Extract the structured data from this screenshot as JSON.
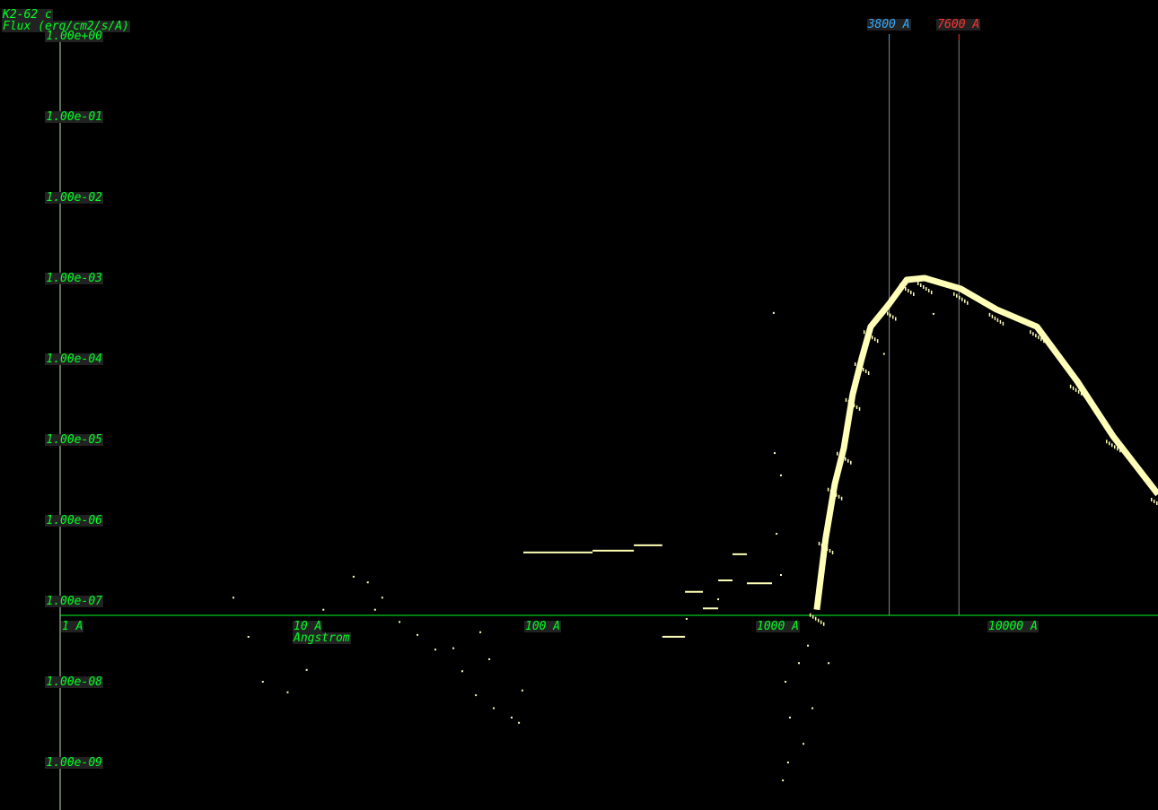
{
  "header": {
    "object_name": "K2-62 c",
    "y_axis_label": "Flux (erg/cm2/s/A)"
  },
  "colors": {
    "axis_text": "#00ff22",
    "label_bg": "#222222",
    "data": "#ffffb8",
    "marker_blue": "#33aaff",
    "marker_red": "#ff3333",
    "marker_line": "#888888"
  },
  "chart_data": {
    "type": "scatter",
    "title": "K2-62 c",
    "xlabel": "Angstrom",
    "ylabel": "Flux (erg/cm2/s/A)",
    "x_scale": "log",
    "y_scale": "log",
    "xlim": [
      1,
      55000
    ],
    "ylim": [
      1e-09,
      1
    ],
    "x_ticks": [
      {
        "value": 1,
        "label": "1 A"
      },
      {
        "value": 10,
        "label": "10 A"
      },
      {
        "value": 100,
        "label": "100 A"
      },
      {
        "value": 1000,
        "label": "1000 A"
      },
      {
        "value": 10000,
        "label": "10000 A"
      }
    ],
    "y_ticks": [
      {
        "value": 1,
        "label": "1.00e+00"
      },
      {
        "value": 0.1,
        "label": "1.00e-01"
      },
      {
        "value": 0.01,
        "label": "1.00e-02"
      },
      {
        "value": 0.001,
        "label": "1.00e-03"
      },
      {
        "value": 0.0001,
        "label": "1.00e-04"
      },
      {
        "value": 1e-05,
        "label": "1.00e-05"
      },
      {
        "value": 1e-06,
        "label": "1.00e-06"
      },
      {
        "value": 1e-07,
        "label": "1.00e-07"
      },
      {
        "value": 1e-08,
        "label": "1.00e-08"
      },
      {
        "value": 1e-09,
        "label": "1.00e-09"
      }
    ],
    "markers": [
      {
        "wavelength": 3800,
        "label": "3800 A",
        "color": "#33aaff"
      },
      {
        "wavelength": 7600,
        "label": "7600 A",
        "color": "#ff3333"
      }
    ],
    "continuum": [
      [
        1850,
        7.8e-08
      ],
      [
        2020,
        6e-07
      ],
      [
        2210,
        2.8e-06
      ],
      [
        2420,
        7.8e-06
      ],
      [
        2640,
        3.6e-05
      ],
      [
        2890,
        0.0001
      ],
      [
        3160,
        0.00025
      ],
      [
        3780,
        0.00047
      ],
      [
        4520,
        0.00095
      ],
      [
        5400,
        0.001
      ],
      [
        7720,
        0.00074
      ],
      [
        11000,
        0.00041
      ],
      [
        16500,
        0.00025
      ],
      [
        24600,
        5.3e-05
      ],
      [
        35200,
        1.1e-05
      ],
      [
        55000,
        2.1e-06
      ]
    ],
    "segments": [
      [
        100,
        199,
        4e-07
      ],
      [
        199,
        300,
        4.2e-07
      ],
      [
        300,
        398,
        4.9e-07
      ],
      [
        398,
        499,
        3.6e-08
      ],
      [
        499,
        596,
        1.3e-07
      ],
      [
        596,
        694,
        8.1e-08
      ],
      [
        694,
        800,
        1.8e-07
      ],
      [
        800,
        923,
        3.8e-07
      ],
      [
        923,
        1185,
        1.66e-07
      ]
    ],
    "points": [
      [
        5.6,
        1.1e-07
      ],
      [
        6.5,
        3.6e-08
      ],
      [
        7.5,
        1e-08
      ],
      [
        9.6,
        7.4e-09
      ],
      [
        11.6,
        1.4e-08
      ],
      [
        13.7,
        7.8e-08
      ],
      [
        18.5,
        2e-07
      ],
      [
        21.3,
        1.7e-07
      ],
      [
        22.9,
        7.8e-08
      ],
      [
        24.6,
        1.1e-07
      ],
      [
        29.2,
        5.5e-08
      ],
      [
        34.9,
        3.8e-08
      ],
      [
        41.7,
        2.5e-08
      ],
      [
        49.9,
        2.6e-08
      ],
      [
        54.5,
        1.35e-08
      ],
      [
        62.4,
        6.8e-09
      ],
      [
        74.5,
        4.7e-09
      ],
      [
        89,
        3.6e-09
      ],
      [
        95.7,
        3.1e-09
      ],
      [
        99,
        7.8e-09
      ],
      [
        71.3,
        1.9e-08
      ],
      [
        65.2,
        4.1e-08
      ],
      [
        1205,
        0.00037
      ],
      [
        1217,
        6.8e-06
      ],
      [
        1295,
        3.6e-06
      ],
      [
        1240,
        6.8e-07
      ],
      [
        1295,
        2.1e-07
      ],
      [
        1355,
        1e-08
      ],
      [
        1390,
        1e-09
      ],
      [
        1320,
        6e-10
      ],
      [
        1416,
        3.6e-09
      ],
      [
        1549,
        1.7e-08
      ],
      [
        1694,
        2.8e-08
      ],
      [
        1771,
        4.7e-09
      ],
      [
        1620,
        1.7e-09
      ],
      [
        1482,
        4.7e-08
      ],
      [
        2080,
        1.7e-08
      ],
      [
        507,
        6e-08
      ],
      [
        694,
        1.05e-07
      ],
      [
        5900,
        0.00036
      ],
      [
        3610,
        0.000115
      ]
    ]
  }
}
